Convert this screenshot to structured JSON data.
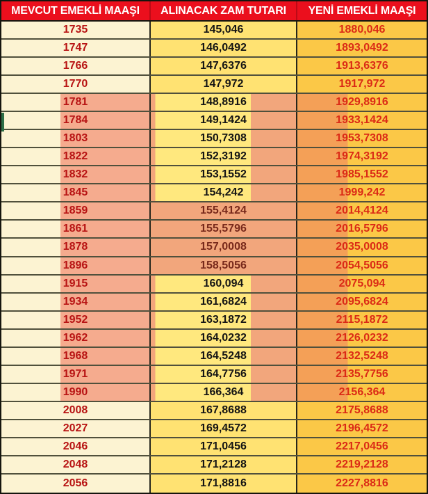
{
  "chart_data": {
    "type": "table",
    "title": "",
    "columns": [
      "MEVCUT EMEKLİ MAAŞI",
      "ALINACAK ZAM TUTARI",
      "YENİ EMEKLİ MAAŞI"
    ],
    "rows": [
      {
        "mevcut": "1735",
        "zam": "145,046",
        "yeni": "1880,046"
      },
      {
        "mevcut": "1747",
        "zam": "146,0492",
        "yeni": "1893,0492"
      },
      {
        "mevcut": "1766",
        "zam": "147,6376",
        "yeni": "1913,6376"
      },
      {
        "mevcut": "1770",
        "zam": "147,972",
        "yeni": "1917,972"
      },
      {
        "mevcut": "1781",
        "zam": "148,8916",
        "yeni": "1929,8916"
      },
      {
        "mevcut": "1784",
        "zam": "149,1424",
        "yeni": "1933,1424"
      },
      {
        "mevcut": "1803",
        "zam": "150,7308",
        "yeni": "1953,7308"
      },
      {
        "mevcut": "1822",
        "zam": "152,3192",
        "yeni": "1974,3192"
      },
      {
        "mevcut": "1832",
        "zam": "153,1552",
        "yeni": "1985,1552"
      },
      {
        "mevcut": "1845",
        "zam": "154,242",
        "yeni": "1999,242"
      },
      {
        "mevcut": "1859",
        "zam": "155,4124",
        "yeni": "2014,4124"
      },
      {
        "mevcut": "1861",
        "zam": "155,5796",
        "yeni": "2016,5796"
      },
      {
        "mevcut": "1878",
        "zam": "157,0008",
        "yeni": "2035,0008"
      },
      {
        "mevcut": "1896",
        "zam": "158,5056",
        "yeni": "2054,5056"
      },
      {
        "mevcut": "1915",
        "zam": "160,094",
        "yeni": "2075,094"
      },
      {
        "mevcut": "1934",
        "zam": "161,6824",
        "yeni": "2095,6824"
      },
      {
        "mevcut": "1952",
        "zam": "163,1872",
        "yeni": "2115,1872"
      },
      {
        "mevcut": "1962",
        "zam": "164,0232",
        "yeni": "2126,0232"
      },
      {
        "mevcut": "1968",
        "zam": "164,5248",
        "yeni": "2132,5248"
      },
      {
        "mevcut": "1971",
        "zam": "164,7756",
        "yeni": "2135,7756"
      },
      {
        "mevcut": "1990",
        "zam": "166,364",
        "yeni": "2156,364"
      },
      {
        "mevcut": "2008",
        "zam": "167,8688",
        "yeni": "2175,8688"
      },
      {
        "mevcut": "2027",
        "zam": "169,4572",
        "yeni": "2196,4572"
      },
      {
        "mevcut": "2046",
        "zam": "171,0456",
        "yeni": "2217,0456"
      },
      {
        "mevcut": "2048",
        "zam": "171,2128",
        "yeni": "2219,2128"
      },
      {
        "mevcut": "2056",
        "zam": "171,8816",
        "yeni": "2227,8816"
      }
    ]
  },
  "table": {
    "columns": [
      {
        "label": "MEVCUT EMEKLİ MAAŞI"
      },
      {
        "label": "ALINACAK ZAM TUTARI"
      },
      {
        "label": "YENİ EMEKLİ MAAŞI"
      }
    ]
  },
  "highlight": {
    "band_row_start": 5,
    "band_row_end": 21,
    "mid_full_salmon_rows": [
      11,
      12,
      13,
      14
    ],
    "green_mark_row": 6
  },
  "colors": {
    "header_bg": "#eb0f1d",
    "header_text": "#ffffff",
    "col1_bg": "#fcf3d2",
    "col1_text": "#b81414",
    "col2_bg": "#ffe272",
    "col2_text": "#141414",
    "col2_text_on_salmon": "#78291b",
    "col3_bg": "#fbc847",
    "col3_text": "#db2a16",
    "salmon_on_cream": "#f5ab8e",
    "salmon_on_gold": "#f2a67c",
    "salmon_on_orange": "#f4a057",
    "row_border": "#50503c",
    "col_border": "#26261c",
    "outer_border": "#15150e",
    "green_mark": "#2d6e46"
  }
}
